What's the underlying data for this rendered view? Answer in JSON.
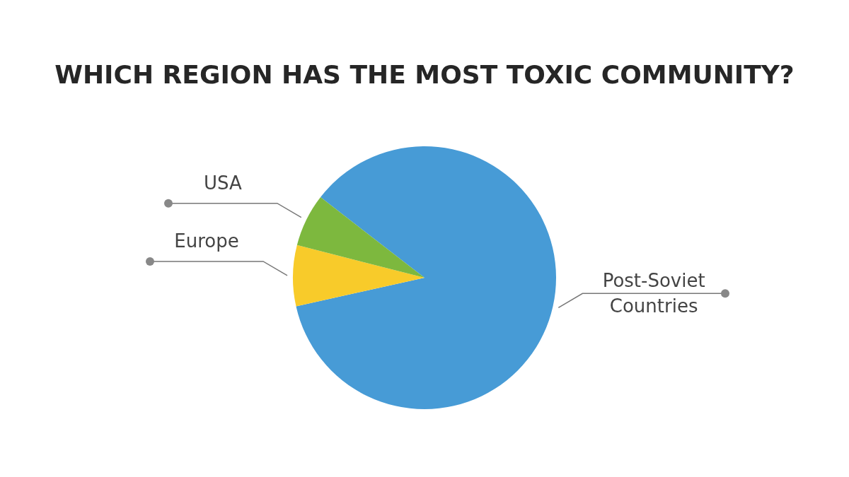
{
  "chart_data": {
    "type": "pie",
    "title": "WHICH REGION HAS THE MOST TOXIC COMMUNITY?",
    "categories": [
      "Post-Soviet Countries",
      "Europe",
      "USA"
    ],
    "values": [
      86,
      7.5,
      6.5
    ],
    "colors": [
      "#479bd6",
      "#f8cb2a",
      "#7db83e"
    ]
  }
}
